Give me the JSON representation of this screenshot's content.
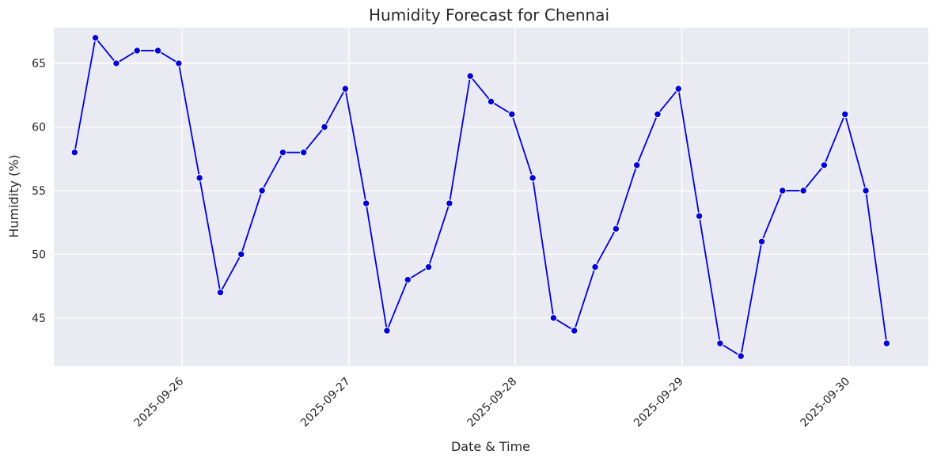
{
  "chart_data": {
    "type": "line",
    "title": "Humidity Forecast for Chennai",
    "xlabel": "Date & Time",
    "ylabel": "Humidity (%)",
    "x_tick_labels": [
      "2025-09-26",
      "2025-09-27",
      "2025-09-28",
      "2025-09-29",
      "2025-09-30"
    ],
    "y_ticks": [
      45,
      50,
      55,
      60,
      65
    ],
    "ylim": [
      41.2,
      67.8
    ],
    "xlim": [
      "2025-09-25 05:30",
      "2025-09-30 11:30"
    ],
    "grid": true,
    "background": "#eaeaf2",
    "line_color": "#0000dd",
    "marker_color": "#0000dd",
    "series": [
      {
        "x": [
          "2025-09-25 08:30",
          "2025-09-25 11:30",
          "2025-09-25 14:30",
          "2025-09-25 17:30",
          "2025-09-25 20:30",
          "2025-09-25 23:30",
          "2025-09-26 02:30",
          "2025-09-26 05:30",
          "2025-09-26 08:30",
          "2025-09-26 11:30",
          "2025-09-26 14:30",
          "2025-09-26 17:30",
          "2025-09-26 20:30",
          "2025-09-26 23:30",
          "2025-09-27 02:30",
          "2025-09-27 05:30",
          "2025-09-27 08:30",
          "2025-09-27 11:30",
          "2025-09-27 14:30",
          "2025-09-27 17:30",
          "2025-09-27 20:30",
          "2025-09-27 23:30",
          "2025-09-28 02:30",
          "2025-09-28 05:30",
          "2025-09-28 08:30",
          "2025-09-28 11:30",
          "2025-09-28 14:30",
          "2025-09-28 17:30",
          "2025-09-28 20:30",
          "2025-09-28 23:30",
          "2025-09-29 02:30",
          "2025-09-29 05:30",
          "2025-09-29 08:30",
          "2025-09-29 11:30",
          "2025-09-29 14:30",
          "2025-09-29 17:30",
          "2025-09-29 20:30",
          "2025-09-29 23:30",
          "2025-09-30 02:30",
          "2025-09-30 05:30"
        ],
        "values": [
          58,
          67,
          65,
          66,
          66,
          65,
          56,
          47,
          50,
          55,
          58,
          58,
          60,
          63,
          54,
          44,
          48,
          49,
          54,
          64,
          62,
          61,
          56,
          45,
          44,
          49,
          52,
          57,
          61,
          63,
          53,
          43,
          42,
          51,
          55,
          55,
          57,
          61,
          55,
          43
        ]
      }
    ]
  }
}
